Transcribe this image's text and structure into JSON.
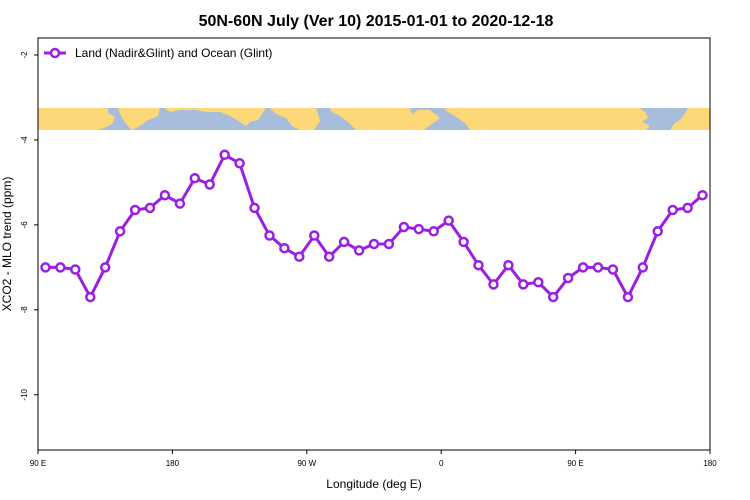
{
  "chart_data": {
    "type": "line",
    "title": "50N-60N July (Ver 10)   2015-01-01 to 2020-12-18",
    "xlabel": "Longitude (deg E)",
    "ylabel": "XCO2 - MLO trend (ppm)",
    "xlim": [
      90,
      540
    ],
    "ylim": [
      -11.3,
      -1.6
    ],
    "x_ticks": [
      {
        "value": 90,
        "label": "90 E"
      },
      {
        "value": 180,
        "label": "180"
      },
      {
        "value": 270,
        "label": "90 W"
      },
      {
        "value": 360,
        "label": "0"
      },
      {
        "value": 450,
        "label": "90 E"
      },
      {
        "value": 540,
        "label": "180"
      }
    ],
    "y_ticks": [
      {
        "value": -2,
        "label": "-2"
      },
      {
        "value": -4,
        "label": "-4"
      },
      {
        "value": -6,
        "label": "-6"
      },
      {
        "value": -8,
        "label": "-8"
      },
      {
        "value": -10,
        "label": "-10"
      }
    ],
    "grid": false,
    "legend_position": "top-left",
    "series": [
      {
        "name": "Land (Nadir&Glint) and Ocean (Glint)",
        "color": "#9b1fe0",
        "x": [
          95,
          105,
          115,
          125,
          135,
          145,
          155,
          165,
          175,
          185,
          195,
          205,
          215,
          225,
          235,
          245,
          255,
          265,
          275,
          285,
          295,
          305,
          315,
          325,
          335,
          345,
          355,
          365,
          375,
          385,
          395,
          405,
          415,
          425,
          435,
          445,
          455,
          465,
          475,
          485,
          495,
          505,
          515,
          525,
          535
        ],
        "values": [
          -7.0,
          -7.0,
          -7.05,
          -7.7,
          -7.0,
          -6.15,
          -5.65,
          -5.6,
          -5.3,
          -5.5,
          -4.9,
          -5.05,
          -4.35,
          -4.55,
          -5.6,
          -6.25,
          -6.55,
          -6.75,
          -6.25,
          -6.75,
          -6.4,
          -6.6,
          -6.45,
          -6.45,
          -6.05,
          -6.1,
          -6.15,
          -5.9,
          -6.4,
          -6.95,
          -7.4,
          -6.95,
          -7.4,
          -7.35,
          -7.7,
          -7.25,
          -7.0,
          -7.0,
          -7.05,
          -7.7,
          -7.0,
          -6.15,
          -5.65,
          -5.6,
          -5.3
        ]
      }
    ]
  },
  "map_strip": {
    "ocean_color": "#a8bcdc",
    "land_color": "#fcd878"
  }
}
